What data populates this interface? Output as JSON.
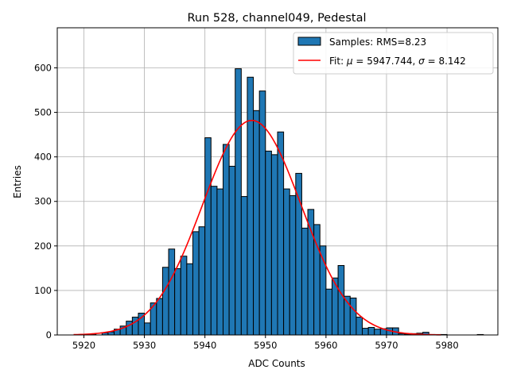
{
  "chart_data": {
    "type": "bar",
    "title": "Run 528, channel049, Pedestal",
    "xlabel": "ADC Counts",
    "ylabel": "Entries",
    "xlim": [
      5915.6,
      5988.4
    ],
    "ylim": [
      0,
      690
    ],
    "xticks": [
      5920,
      5930,
      5940,
      5950,
      5960,
      5970,
      5980
    ],
    "yticks": [
      0,
      100,
      200,
      300,
      400,
      500,
      600
    ],
    "grid": true,
    "legend_position": "top-right",
    "bin_width": 1,
    "bin_starts": [
      5920,
      5921,
      5922,
      5923,
      5924,
      5925,
      5926,
      5927,
      5928,
      5929,
      5930,
      5931,
      5932,
      5933,
      5934,
      5935,
      5936,
      5937,
      5938,
      5939,
      5940,
      5941,
      5942,
      5943,
      5944,
      5945,
      5946,
      5947,
      5948,
      5949,
      5950,
      5951,
      5952,
      5953,
      5954,
      5955,
      5956,
      5957,
      5958,
      5959,
      5960,
      5961,
      5962,
      5963,
      5964,
      5965,
      5966,
      5967,
      5968,
      5969,
      5970,
      5971,
      5972,
      5973,
      5974,
      5975,
      5976,
      5977,
      5978,
      5979,
      5980,
      5981,
      5982,
      5983,
      5984,
      5985
    ],
    "counts": [
      1,
      2,
      0,
      5,
      7,
      13,
      20,
      31,
      40,
      49,
      27,
      72,
      82,
      152,
      193,
      149,
      177,
      160,
      232,
      243,
      443,
      334,
      328,
      428,
      379,
      598,
      311,
      579,
      504,
      548,
      413,
      405,
      456,
      328,
      313,
      363,
      240,
      282,
      248,
      200,
      103,
      128,
      156,
      87,
      83,
      40,
      15,
      17,
      13,
      14,
      16,
      16,
      3,
      2,
      3,
      4,
      6,
      1,
      1,
      1,
      0,
      0,
      0,
      0,
      0,
      1
    ],
    "series": [
      {
        "name": "Samples: RMS=8.23",
        "type": "histogram",
        "color": "#1f77b4",
        "edgecolor": "#000000"
      },
      {
        "name": "Fit: μ = 5947.744, σ = 8.142",
        "type": "line",
        "color": "#ff0000",
        "mu": 5947.744,
        "sigma": 8.142,
        "amplitude": 482,
        "x_range": [
          5918.3,
          5979.0
        ]
      }
    ]
  },
  "legend": {
    "hist_label_prefix": "Samples: RMS=8.23",
    "fit_label_prefix": "Fit: ",
    "fit_mu_symbol": "μ",
    "fit_mu_value": " = 5947.744, ",
    "fit_sigma_symbol": "σ",
    "fit_sigma_value": " = 8.142"
  }
}
